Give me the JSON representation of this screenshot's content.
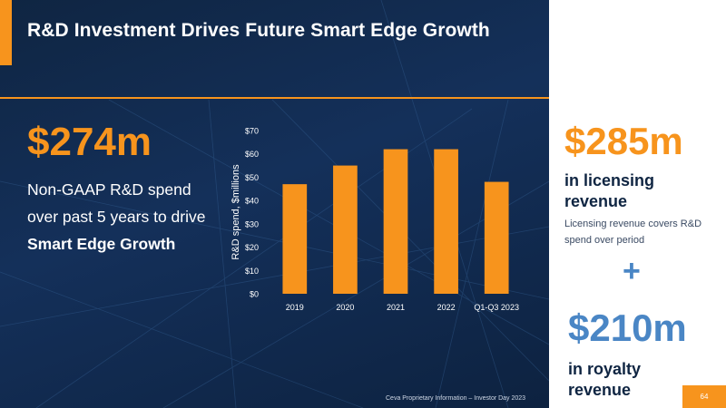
{
  "title": "R&D Investment Drives Future Smart Edge Growth",
  "left": {
    "stat": "$274m",
    "desc_prefix": "Non-GAAP R&D spend over past 5 years to drive ",
    "desc_bold": "Smart Edge Growth"
  },
  "right": {
    "stat1": "$285m",
    "label1": "in licensing revenue",
    "note": "Licensing revenue covers R&D spend over period",
    "plus": "+",
    "stat2": "$210m",
    "label2": "in royalty revenue"
  },
  "footer": "Ceva Proprietary Information – Investor Day 2023",
  "page_number": "64",
  "colors": {
    "accent": "#f7941d",
    "navy": "#0f2542",
    "blue": "#4a86c5"
  },
  "chart_data": {
    "type": "bar",
    "categories": [
      "2019",
      "2020",
      "2021",
      "2022",
      "Q1-Q3 2023"
    ],
    "values": [
      47,
      55,
      62,
      62,
      48
    ],
    "ylabel": "R&D spend, $millions",
    "xlabel": "",
    "ylim": [
      0,
      70
    ],
    "yticks": [
      0,
      10,
      20,
      30,
      40,
      50,
      60,
      70
    ],
    "ytick_labels": [
      "$0",
      "$10",
      "$20",
      "$30",
      "$40",
      "$50",
      "$60",
      "$70"
    ],
    "grid": false,
    "bar_color": "#f7941d"
  }
}
